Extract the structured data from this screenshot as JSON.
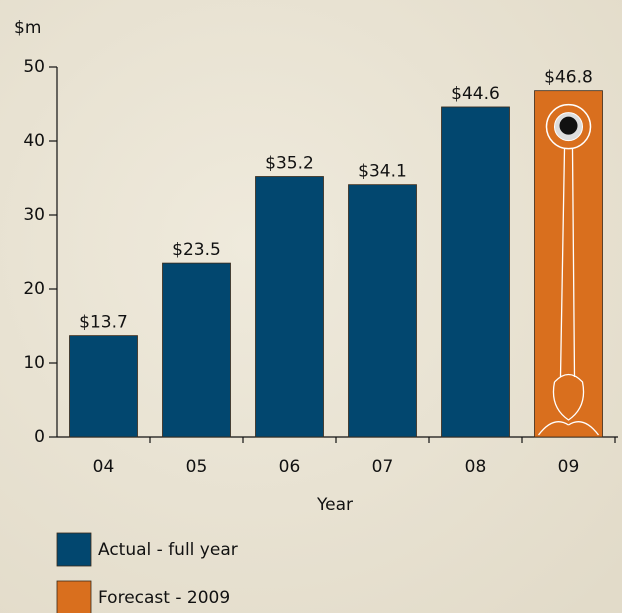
{
  "chart_data": {
    "type": "bar",
    "y_label": "$m",
    "x_label": "Year",
    "categories": [
      "04",
      "05",
      "06",
      "07",
      "08",
      "09"
    ],
    "series": [
      {
        "name": "Actual - full year",
        "color": "#02476f",
        "values": [
          13.7,
          23.5,
          35.2,
          34.1,
          44.6,
          null
        ],
        "value_labels": [
          "$13.7",
          "$23.5",
          "$35.2",
          "$34.1",
          "$44.6",
          null
        ]
      },
      {
        "name": "Forecast - 2009",
        "color": "#d96f1e",
        "values": [
          null,
          null,
          null,
          null,
          null,
          46.8
        ],
        "value_labels": [
          null,
          null,
          null,
          null,
          null,
          "$46.8"
        ]
      }
    ],
    "ylim": [
      0,
      50
    ],
    "yticks": [
      0,
      10,
      20,
      30,
      40,
      50
    ],
    "grid": false
  }
}
